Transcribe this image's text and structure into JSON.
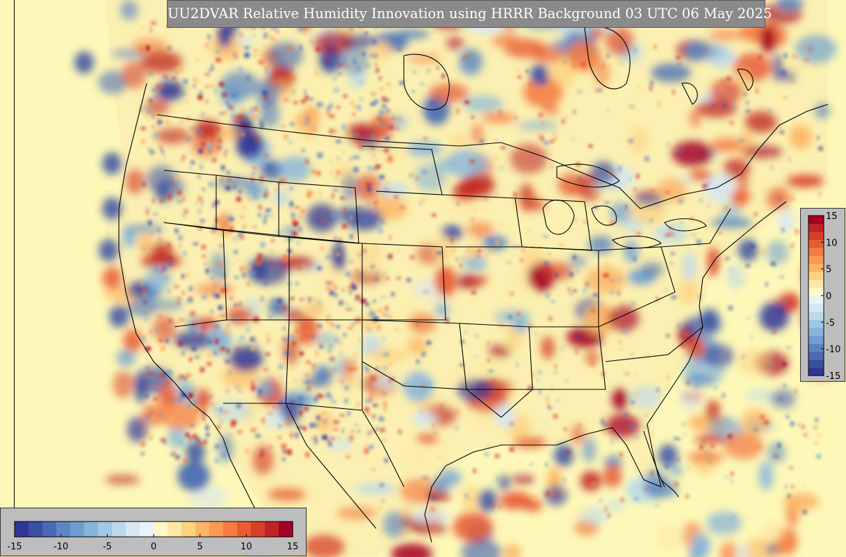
{
  "title": "UU2DVAR Relative Humidity Innovation using HRRR Background 03 UTC 06 May 2025",
  "colorbar": {
    "min": -15,
    "max": 15,
    "levels": 30,
    "colors": [
      "#313695",
      "#3b4fa3",
      "#4a6bb3",
      "#5b86c2",
      "#6f9fd0",
      "#86b4db",
      "#a0c7e4",
      "#bcd9ec",
      "#d5e7f2",
      "#eaf3f7",
      "#fff7c8",
      "#fee8a4",
      "#fdd382",
      "#fcb565",
      "#f89a52",
      "#f37c43",
      "#e75c35",
      "#d6402b",
      "#c12523",
      "#a50026"
    ],
    "vertical_ticks": [
      "15",
      "10",
      "5",
      "0",
      "-5",
      "-10",
      "-15"
    ],
    "horizontal_ticks": [
      "-15",
      "-10",
      "-5",
      "0",
      "5",
      "10",
      "15"
    ]
  },
  "map": {
    "background_color": "#fdf8b8",
    "border_color": "#000000"
  }
}
